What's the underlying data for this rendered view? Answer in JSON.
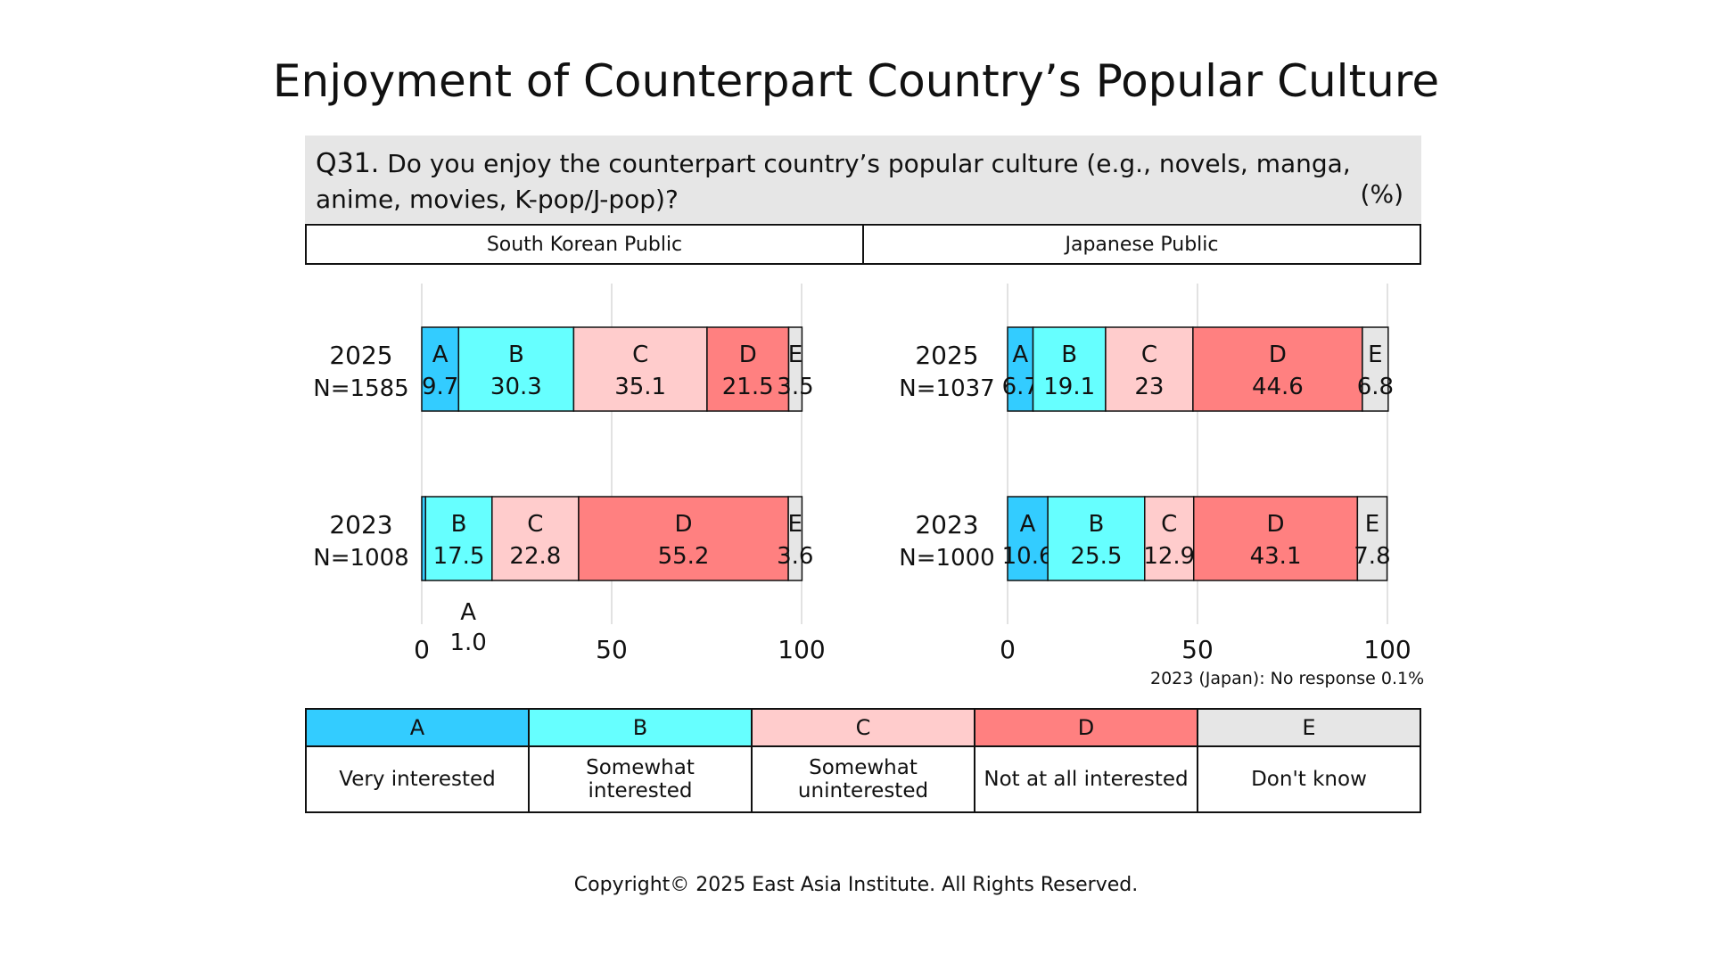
{
  "title": "Enjoyment of Counterpart Country’s Popular Culture",
  "question": {
    "number": "Q31.",
    "text": "Do you enjoy the counterpart country’s popular culture (e.g., novels, manga, anime, movies, K-pop/J-pop)?",
    "unit": "(%)"
  },
  "panels": [
    {
      "header": "South Korean Public"
    },
    {
      "header": "Japanese Public"
    }
  ],
  "colors": {
    "A": "#33ccff",
    "B": "#66ffff",
    "C": "#ffcccc",
    "D": "#ff8080",
    "E": "#e6e6e6"
  },
  "chart_data": [
    {
      "type": "bar",
      "orientation": "horizontal",
      "stacked": true,
      "title": "South Korean Public",
      "categories": [
        "2025\nN=1585",
        "2023\nN=1008"
      ],
      "xlim": [
        0,
        100
      ],
      "xticks": [
        "0",
        "50",
        "100"
      ],
      "series": [
        {
          "name": "A",
          "values": [
            9.7,
            1.0
          ]
        },
        {
          "name": "B",
          "values": [
            30.3,
            17.5
          ]
        },
        {
          "name": "C",
          "values": [
            35.1,
            22.8
          ]
        },
        {
          "name": "D",
          "values": [
            21.5,
            55.2
          ]
        },
        {
          "name": "E",
          "values": [
            3.5,
            3.6
          ]
        }
      ],
      "grid": true
    },
    {
      "type": "bar",
      "orientation": "horizontal",
      "stacked": true,
      "title": "Japanese Public",
      "categories": [
        "2025\nN=1037",
        "2023\nN=1000"
      ],
      "xlim": [
        0,
        100
      ],
      "xticks": [
        "0",
        "50",
        "100"
      ],
      "series": [
        {
          "name": "A",
          "values": [
            6.7,
            10.6
          ]
        },
        {
          "name": "B",
          "values": [
            19.1,
            25.5
          ]
        },
        {
          "name": "C",
          "values": [
            23,
            12.9
          ]
        },
        {
          "name": "D",
          "values": [
            44.6,
            43.1
          ]
        },
        {
          "name": "E",
          "values": [
            6.8,
            7.8
          ]
        }
      ],
      "grid": true
    }
  ],
  "note": "2023 (Japan): No response 0.1%",
  "legend": [
    {
      "key": "A",
      "label": "Very interested"
    },
    {
      "key": "B",
      "label": "Somewhat interested"
    },
    {
      "key": "C",
      "label": "Somewhat uninterested"
    },
    {
      "key": "D",
      "label": "Not at all interested"
    },
    {
      "key": "E",
      "label": "Don't know"
    }
  ],
  "copyright": "Copyright© 2025 East Asia Institute. All Rights Reserved."
}
